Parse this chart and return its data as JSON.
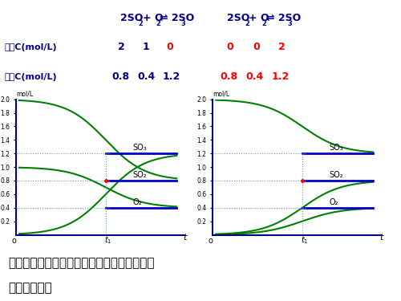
{
  "title1": "2SO₂+ O₂⇌ 2SO₃",
  "title2": "2SO₂+ O₂⇌ 2SO₃",
  "row1_label": "起始C(mol/L)",
  "row2_label": "平衡C(mol/L)",
  "row1_left": [
    "2",
    "1",
    "0"
  ],
  "row1_right": [
    "0",
    "0",
    "2"
  ],
  "row2_left": [
    "0.8",
    "0.4",
    "1.2"
  ],
  "row2_right": [
    "0.8",
    "0.4",
    "1.2"
  ],
  "left_dark_blue": [
    "2",
    "1",
    "0.8",
    "0.4"
  ],
  "left_red": [
    "0",
    "1.2"
  ],
  "right_red": [
    "0",
    "0",
    "2",
    "0.8",
    "0.4",
    "1.2"
  ],
  "eq_so3": 1.2,
  "eq_so2": 0.8,
  "eq_o2": 0.4,
  "ymax": 2.0,
  "bottom_text_line1": "以上两个平衡，有什么异同？化学平衡的建立",
  "bottom_text_line2": "与什么有关？",
  "bottom_bg": "#f5d99a",
  "dark_blue": "#00008B",
  "red": "#FF0000",
  "green": "#008000",
  "line_blue": "#0000CD",
  "axis_arrow_color": "#00008B",
  "dotted_color": "#6699CC",
  "bg_white": "#FFFFFF"
}
